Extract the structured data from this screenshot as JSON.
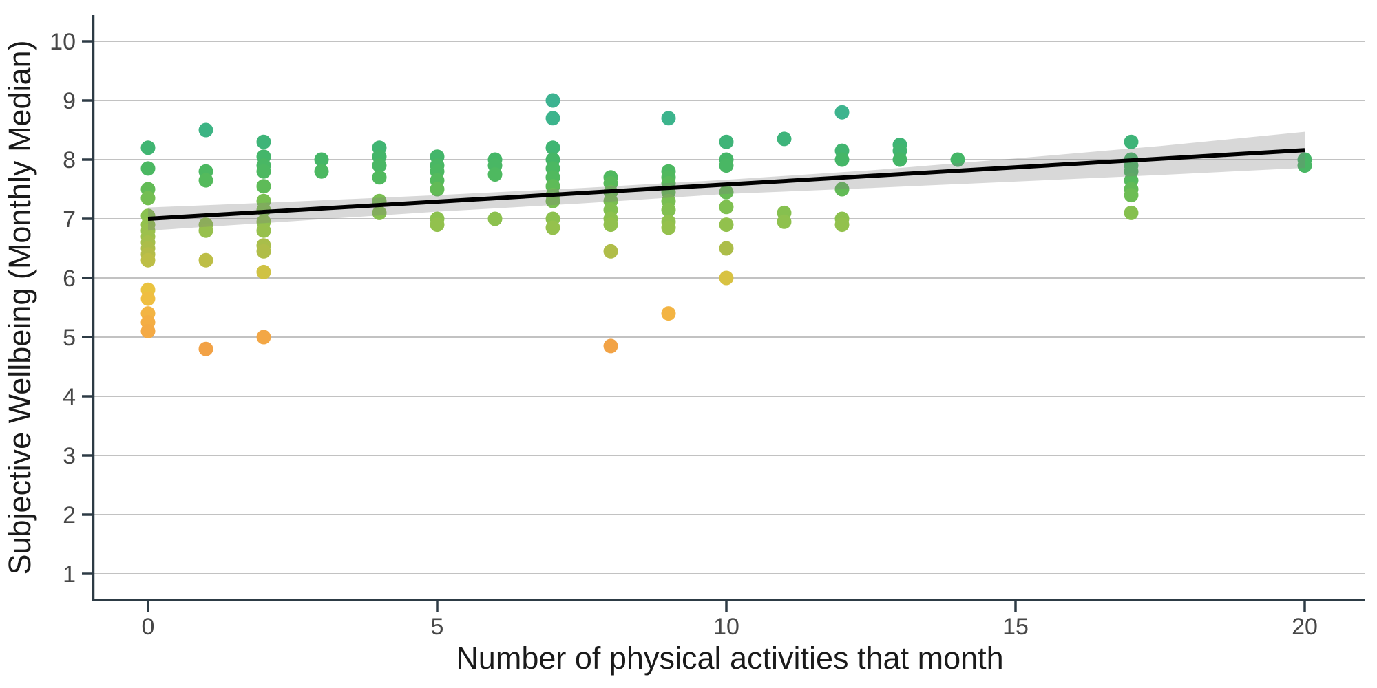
{
  "chart_data": {
    "type": "scatter",
    "title": "",
    "xlabel": "Number of physical activities that month",
    "ylabel": "Subjective Wellbeing (Monthly Median)",
    "x_ticks": [
      0,
      5,
      10,
      15,
      20
    ],
    "y_ticks": [
      1,
      2,
      3,
      4,
      5,
      6,
      7,
      8,
      9,
      10
    ],
    "xlim": [
      -0.93,
      21.05
    ],
    "ylim": [
      0.56,
      10.44
    ],
    "grid": "horizontal-gridlines-only",
    "legend": "none",
    "points": [
      [
        0,
        8.2
      ],
      [
        0,
        7.85
      ],
      [
        0,
        7.5
      ],
      [
        0,
        7.35
      ],
      [
        0,
        7.05
      ],
      [
        0,
        6.9
      ],
      [
        0,
        6.8
      ],
      [
        0,
        6.7
      ],
      [
        0,
        6.6
      ],
      [
        0,
        6.5
      ],
      [
        0,
        6.4
      ],
      [
        0,
        6.3
      ],
      [
        0,
        5.8
      ],
      [
        0,
        5.65
      ],
      [
        0,
        5.4
      ],
      [
        0,
        5.25
      ],
      [
        0,
        5.1
      ],
      [
        1,
        8.5
      ],
      [
        1,
        7.8
      ],
      [
        1,
        7.65
      ],
      [
        1,
        6.9
      ],
      [
        1,
        6.8
      ],
      [
        1,
        6.3
      ],
      [
        1,
        4.8
      ],
      [
        2,
        8.3
      ],
      [
        2,
        8.05
      ],
      [
        2,
        7.9
      ],
      [
        2,
        7.8
      ],
      [
        2,
        7.55
      ],
      [
        2,
        7.3
      ],
      [
        2,
        7.15
      ],
      [
        2,
        6.95
      ],
      [
        2,
        6.8
      ],
      [
        2,
        6.55
      ],
      [
        2,
        6.45
      ],
      [
        2,
        6.1
      ],
      [
        2,
        5.0
      ],
      [
        3,
        8.0
      ],
      [
        3,
        7.8
      ],
      [
        4,
        8.2
      ],
      [
        4,
        8.05
      ],
      [
        4,
        7.9
      ],
      [
        4,
        7.7
      ],
      [
        4,
        7.3
      ],
      [
        4,
        7.1
      ],
      [
        5,
        8.05
      ],
      [
        5,
        7.9
      ],
      [
        5,
        7.8
      ],
      [
        5,
        7.65
      ],
      [
        5,
        7.5
      ],
      [
        5,
        7.0
      ],
      [
        5,
        6.9
      ],
      [
        6,
        8.0
      ],
      [
        6,
        7.9
      ],
      [
        6,
        7.75
      ],
      [
        6,
        7.0
      ],
      [
        7,
        9.0
      ],
      [
        7,
        8.7
      ],
      [
        7,
        8.2
      ],
      [
        7,
        8.0
      ],
      [
        7,
        7.85
      ],
      [
        7,
        7.7
      ],
      [
        7,
        7.55
      ],
      [
        7,
        7.4
      ],
      [
        7,
        7.3
      ],
      [
        7,
        7.0
      ],
      [
        7,
        6.85
      ],
      [
        8,
        7.7
      ],
      [
        8,
        7.6
      ],
      [
        8,
        7.45
      ],
      [
        8,
        7.3
      ],
      [
        8,
        7.15
      ],
      [
        8,
        7.0
      ],
      [
        8,
        6.9
      ],
      [
        8,
        6.45
      ],
      [
        8,
        4.85
      ],
      [
        9,
        8.7
      ],
      [
        9,
        7.8
      ],
      [
        9,
        7.7
      ],
      [
        9,
        7.6
      ],
      [
        9,
        7.45
      ],
      [
        9,
        7.3
      ],
      [
        9,
        7.15
      ],
      [
        9,
        6.95
      ],
      [
        9,
        6.85
      ],
      [
        9,
        5.4
      ],
      [
        10,
        8.3
      ],
      [
        10,
        8.0
      ],
      [
        10,
        7.9
      ],
      [
        10,
        7.45
      ],
      [
        10,
        7.2
      ],
      [
        10,
        6.9
      ],
      [
        10,
        6.5
      ],
      [
        10,
        6.0
      ],
      [
        11,
        8.35
      ],
      [
        11,
        7.1
      ],
      [
        11,
        6.95
      ],
      [
        12,
        8.8
      ],
      [
        12,
        8.15
      ],
      [
        12,
        8.0
      ],
      [
        12,
        7.5
      ],
      [
        12,
        7.0
      ],
      [
        12,
        6.9
      ],
      [
        13,
        8.25
      ],
      [
        13,
        8.15
      ],
      [
        13,
        8.0
      ],
      [
        14,
        8.0
      ],
      [
        17,
        8.3
      ],
      [
        17,
        8.0
      ],
      [
        17,
        7.9
      ],
      [
        17,
        7.8
      ],
      [
        17,
        7.65
      ],
      [
        17,
        7.5
      ],
      [
        17,
        7.4
      ],
      [
        17,
        7.1
      ],
      [
        20,
        8.0
      ],
      [
        20,
        7.9
      ]
    ],
    "color_scale": {
      "maps": "point color from y value",
      "stops": [
        [
          4.8,
          "#f2a246"
        ],
        [
          5.2,
          "#f4ac44"
        ],
        [
          5.5,
          "#f3b843"
        ],
        [
          5.8,
          "#eac33f"
        ],
        [
          6.1,
          "#cfc243"
        ],
        [
          6.4,
          "#b4bc48"
        ],
        [
          6.7,
          "#9dc04c"
        ],
        [
          7.0,
          "#8cc14e"
        ],
        [
          7.3,
          "#79bf51"
        ],
        [
          7.5,
          "#62bb56"
        ],
        [
          7.7,
          "#50b95e"
        ],
        [
          8.0,
          "#45b667"
        ],
        [
          8.3,
          "#3eb478"
        ],
        [
          8.6,
          "#3cb48a"
        ],
        [
          9.0,
          "#3db391"
        ]
      ]
    },
    "trend_line": {
      "type": "linear",
      "x0": 0,
      "y0": 7.0,
      "x1": 20,
      "y1": 8.16,
      "color": "#000000"
    },
    "confidence_band": {
      "x": [
        0,
        2.5,
        5,
        7.5,
        10,
        12.5,
        15,
        17.5,
        20
      ],
      "upper": [
        7.19,
        7.29,
        7.4,
        7.52,
        7.66,
        7.82,
        8.02,
        8.23,
        8.47
      ],
      "lower": [
        6.8,
        6.96,
        7.12,
        7.26,
        7.42,
        7.52,
        7.63,
        7.74,
        7.86
      ],
      "fill": "#7d7d7d",
      "opacity": 0.3
    }
  },
  "style": {
    "background": "#ffffff",
    "gridline_color": "#adadad",
    "axis_line_color": "#2d3b45",
    "tick_label_color": "#474747",
    "axis_title_color": "#1a1a1a",
    "point_radius": 10.5
  }
}
